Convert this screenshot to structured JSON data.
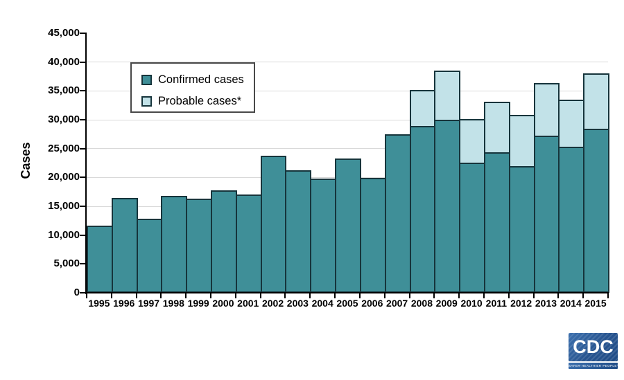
{
  "chart_data": {
    "type": "bar",
    "stacked": true,
    "ylabel": "Cases",
    "ylim": [
      0,
      45000
    ],
    "ytick_step": 5000,
    "grid": true,
    "legend_position": "upper-left-inside",
    "categories": [
      "1995",
      "1996",
      "1997",
      "1998",
      "1999",
      "2000",
      "2001",
      "2002",
      "2003",
      "2004",
      "2005",
      "2006",
      "2007",
      "2008",
      "2009",
      "2010",
      "2011",
      "2012",
      "2013",
      "2014",
      "2015"
    ],
    "series": [
      {
        "name": "Confirmed cases",
        "color": "#3f8f98",
        "values": [
          11700,
          16455,
          12801,
          16801,
          16273,
          17730,
          17029,
          23763,
          21273,
          19804,
          23305,
          19931,
          27444,
          28921,
          29959,
          22561,
          24364,
          22014,
          27203,
          25359,
          28453
        ]
      },
      {
        "name": "Probable cases*",
        "color": "#c2e2e8",
        "values": [
          0,
          0,
          0,
          0,
          0,
          0,
          0,
          0,
          0,
          0,
          0,
          0,
          0,
          6277,
          8509,
          7597,
          8733,
          8817,
          9104,
          8103,
          9616
        ]
      }
    ]
  },
  "legend": {
    "items": [
      {
        "label": "Confirmed cases",
        "color": "#3f8f98"
      },
      {
        "label": "Probable cases*",
        "color": "#c2e2e8"
      }
    ]
  },
  "logo": {
    "text": "CDC",
    "tagline": "SAFER·HEALTHIER·PEOPLE™"
  },
  "colors": {
    "bar_border": "#16343b",
    "axis": "#000000",
    "gridline": "#d9d9d9",
    "legend_border": "#484848",
    "logo_blue": "#27548f",
    "background": "#ffffff"
  }
}
